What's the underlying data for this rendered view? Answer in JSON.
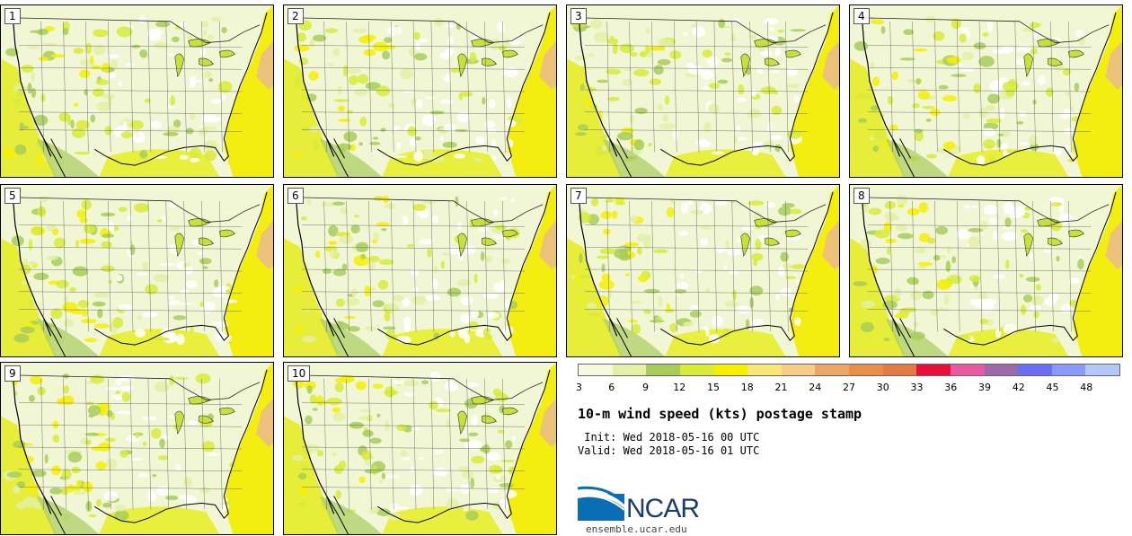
{
  "panels": [
    {
      "label": "1"
    },
    {
      "label": "2"
    },
    {
      "label": "3"
    },
    {
      "label": "4"
    },
    {
      "label": "5"
    },
    {
      "label": "6"
    },
    {
      "label": "7"
    },
    {
      "label": "8"
    },
    {
      "label": "9"
    },
    {
      "label": "10"
    }
  ],
  "legend": {
    "ticks": [
      "3",
      "6",
      "9",
      "12",
      "15",
      "18",
      "21",
      "24",
      "27",
      "30",
      "33",
      "36",
      "39",
      "42",
      "45",
      "48"
    ],
    "colors": [
      "#f4f9e0",
      "#e3f0a6",
      "#a8cc5c",
      "#d8ea3a",
      "#f6f000",
      "#f9e67a",
      "#f6cd86",
      "#eba766",
      "#e88f4a",
      "#e07b45",
      "#ea0f3a",
      "#e85aa0",
      "#9c6aa8",
      "#6a6ef0",
      "#8a9af8",
      "#b3c8f8"
    ]
  },
  "title": "10-m wind speed (kts) postage stamp",
  "init_line": " Init: Wed 2018-05-16 00 UTC",
  "valid_line": "Valid: Wed 2018-05-16 01 UTC",
  "logo_text": "NCAR",
  "site": "ensemble.ucar.edu"
}
